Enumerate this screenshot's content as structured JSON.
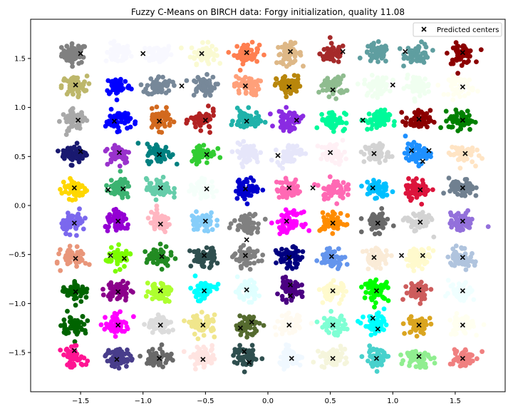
{
  "chart_data": {
    "type": "scatter",
    "title": "Fuzzy C-Means on BIRCH data: Forgy initialization, quality 11.08",
    "xlabel": "",
    "ylabel": "",
    "xlim": [
      -1.9,
      1.9
    ],
    "ylim": [
      -1.9,
      1.9
    ],
    "x_ticks": [
      -1.5,
      -1.0,
      -0.5,
      0.0,
      0.5,
      1.0,
      1.5
    ],
    "x_tick_labels": [
      "−1.5",
      "−1.0",
      "−0.5",
      "0.0",
      "0.5",
      "1.0",
      "1.5"
    ],
    "y_ticks": [
      -1.5,
      -1.0,
      -0.5,
      0.0,
      0.5,
      1.0,
      1.5
    ],
    "y_tick_labels": [
      "−1.5",
      "−1.0",
      "−0.5",
      "0.0",
      "0.5",
      "1.0",
      "1.5"
    ],
    "grid": false,
    "legend_position": "top-right",
    "legend": [
      {
        "label": "Predicted centers",
        "marker": "x",
        "color": "#000000"
      }
    ],
    "grid_columns": [
      -1.55,
      -1.2,
      -0.87,
      -0.52,
      -0.17,
      0.17,
      0.52,
      0.87,
      1.2,
      1.55
    ],
    "grid_rows": [
      1.55,
      1.22,
      0.87,
      0.53,
      0.17,
      -0.17,
      -0.53,
      -0.87,
      -1.22,
      -1.55
    ],
    "cluster_spread": 0.05,
    "cluster_points": 55,
    "clusters": [
      {
        "x": -1.55,
        "y": 1.55,
        "color": "#808080"
      },
      {
        "x": -1.2,
        "y": 1.55,
        "color": "#f8f8ff"
      },
      {
        "x": -0.87,
        "y": 1.55,
        "color": "#f8f8ff"
      },
      {
        "x": -0.52,
        "y": 1.55,
        "color": "#fafad2"
      },
      {
        "x": -0.17,
        "y": 1.55,
        "color": "#ff7f50"
      },
      {
        "x": 0.17,
        "y": 1.55,
        "color": "#deb887"
      },
      {
        "x": 0.52,
        "y": 1.55,
        "color": "#a52a2a"
      },
      {
        "x": 0.87,
        "y": 1.55,
        "color": "#5f9ea0"
      },
      {
        "x": 1.2,
        "y": 1.55,
        "color": "#5f9ea0"
      },
      {
        "x": 1.55,
        "y": 1.55,
        "color": "#8b0000"
      },
      {
        "x": -1.55,
        "y": 1.22,
        "color": "#bdb76b"
      },
      {
        "x": -1.2,
        "y": 1.22,
        "color": "#0000ff"
      },
      {
        "x": -0.87,
        "y": 1.22,
        "color": "#778899"
      },
      {
        "x": -0.52,
        "y": 1.22,
        "color": "#778899"
      },
      {
        "x": -0.17,
        "y": 1.22,
        "color": "#ffa07a"
      },
      {
        "x": 0.17,
        "y": 1.22,
        "color": "#b8860b"
      },
      {
        "x": 0.52,
        "y": 1.22,
        "color": "#8fbc8f"
      },
      {
        "x": 0.87,
        "y": 1.22,
        "color": "#f0fff0"
      },
      {
        "x": 1.2,
        "y": 1.22,
        "color": "#f0fff0"
      },
      {
        "x": 1.55,
        "y": 1.22,
        "color": "#fffff0"
      },
      {
        "x": -1.55,
        "y": 0.87,
        "color": "#a9a9a9"
      },
      {
        "x": -1.2,
        "y": 0.87,
        "color": "#0000ff"
      },
      {
        "x": -0.87,
        "y": 0.87,
        "color": "#d2691e"
      },
      {
        "x": -0.52,
        "y": 0.87,
        "color": "#b22222"
      },
      {
        "x": -0.17,
        "y": 0.87,
        "color": "#20b2aa"
      },
      {
        "x": 0.17,
        "y": 0.87,
        "color": "#8a2be2"
      },
      {
        "x": 0.52,
        "y": 0.87,
        "color": "#00fa9a"
      },
      {
        "x": 0.87,
        "y": 0.87,
        "color": "#00fa9a"
      },
      {
        "x": 1.2,
        "y": 0.87,
        "color": "#8b0000"
      },
      {
        "x": 1.55,
        "y": 0.87,
        "color": "#008000"
      },
      {
        "x": -1.55,
        "y": 0.53,
        "color": "#191970"
      },
      {
        "x": -1.2,
        "y": 0.53,
        "color": "#9932cc"
      },
      {
        "x": -0.87,
        "y": 0.53,
        "color": "#008080"
      },
      {
        "x": -0.52,
        "y": 0.53,
        "color": "#32cd32"
      },
      {
        "x": -0.17,
        "y": 0.53,
        "color": "#e6e6fa"
      },
      {
        "x": 0.17,
        "y": 0.53,
        "color": "#e6e6fa"
      },
      {
        "x": 0.52,
        "y": 0.53,
        "color": "#fff0f5"
      },
      {
        "x": 0.87,
        "y": 0.53,
        "color": "#d3d3d3"
      },
      {
        "x": 1.2,
        "y": 0.53,
        "color": "#1e90ff"
      },
      {
        "x": 1.55,
        "y": 0.53,
        "color": "#ffe4c4"
      },
      {
        "x": -1.55,
        "y": 0.17,
        "color": "#ffd700"
      },
      {
        "x": -1.2,
        "y": 0.17,
        "color": "#3cb371"
      },
      {
        "x": -0.87,
        "y": 0.17,
        "color": "#66cdaa"
      },
      {
        "x": -0.52,
        "y": 0.17,
        "color": "#f5fffa"
      },
      {
        "x": -0.17,
        "y": 0.17,
        "color": "#0000cd"
      },
      {
        "x": 0.17,
        "y": 0.17,
        "color": "#ff69b4"
      },
      {
        "x": 0.52,
        "y": 0.17,
        "color": "#ff69b4"
      },
      {
        "x": 0.87,
        "y": 0.17,
        "color": "#00bfff"
      },
      {
        "x": 1.2,
        "y": 0.17,
        "color": "#dc143c"
      },
      {
        "x": 1.55,
        "y": 0.17,
        "color": "#708090"
      },
      {
        "x": -1.55,
        "y": -0.17,
        "color": "#7b68ee"
      },
      {
        "x": -1.2,
        "y": -0.17,
        "color": "#9400d3"
      },
      {
        "x": -0.87,
        "y": -0.17,
        "color": "#ffb6c1"
      },
      {
        "x": -0.52,
        "y": -0.17,
        "color": "#87cefa"
      },
      {
        "x": -0.17,
        "y": -0.17,
        "color": "#808080"
      },
      {
        "x": 0.17,
        "y": -0.17,
        "color": "#ff00ff"
      },
      {
        "x": 0.52,
        "y": -0.17,
        "color": "#ff8c00"
      },
      {
        "x": 0.87,
        "y": -0.17,
        "color": "#696969"
      },
      {
        "x": 1.2,
        "y": -0.17,
        "color": "#d3d3d3"
      },
      {
        "x": 1.55,
        "y": -0.17,
        "color": "#9370db"
      },
      {
        "x": -1.55,
        "y": -0.53,
        "color": "#e9967a"
      },
      {
        "x": -1.2,
        "y": -0.53,
        "color": "#7cfc00"
      },
      {
        "x": -0.87,
        "y": -0.53,
        "color": "#228b22"
      },
      {
        "x": -0.52,
        "y": -0.53,
        "color": "#2f4f4f"
      },
      {
        "x": -0.17,
        "y": -0.53,
        "color": "#808080"
      },
      {
        "x": 0.17,
        "y": -0.53,
        "color": "#000080"
      },
      {
        "x": 0.52,
        "y": -0.53,
        "color": "#6495ed"
      },
      {
        "x": 0.87,
        "y": -0.53,
        "color": "#faebd7"
      },
      {
        "x": 1.2,
        "y": -0.53,
        "color": "#fffacd"
      },
      {
        "x": 1.55,
        "y": -0.53,
        "color": "#b0c4de"
      },
      {
        "x": -1.55,
        "y": -0.87,
        "color": "#006400"
      },
      {
        "x": -1.2,
        "y": -0.87,
        "color": "#8b008b"
      },
      {
        "x": -0.87,
        "y": -0.87,
        "color": "#adff2f"
      },
      {
        "x": -0.52,
        "y": -0.87,
        "color": "#00ffff"
      },
      {
        "x": -0.17,
        "y": -0.87,
        "color": "#e0ffff"
      },
      {
        "x": 0.17,
        "y": -0.87,
        "color": "#4b0082"
      },
      {
        "x": 0.52,
        "y": -0.87,
        "color": "#fffacd"
      },
      {
        "x": 0.87,
        "y": -0.87,
        "color": "#00ff00"
      },
      {
        "x": 1.2,
        "y": -0.87,
        "color": "#cd5c5c"
      },
      {
        "x": 1.55,
        "y": -0.87,
        "color": "#f0ffff"
      },
      {
        "x": -1.55,
        "y": -1.22,
        "color": "#006400"
      },
      {
        "x": -1.2,
        "y": -1.22,
        "color": "#ff00ff"
      },
      {
        "x": -0.87,
        "y": -1.22,
        "color": "#dcdcdc"
      },
      {
        "x": -0.52,
        "y": -1.22,
        "color": "#f0e68c"
      },
      {
        "x": -0.17,
        "y": -1.22,
        "color": "#556b2f"
      },
      {
        "x": 0.17,
        "y": -1.22,
        "color": "#fffaf0"
      },
      {
        "x": 0.52,
        "y": -1.22,
        "color": "#7fffd4"
      },
      {
        "x": 0.87,
        "y": -1.22,
        "color": "#00ffff"
      },
      {
        "x": 1.2,
        "y": -1.22,
        "color": "#daa520"
      },
      {
        "x": 1.55,
        "y": -1.22,
        "color": "#fffff0"
      },
      {
        "x": -1.55,
        "y": -1.55,
        "color": "#ff1493"
      },
      {
        "x": -1.2,
        "y": -1.55,
        "color": "#483d8b"
      },
      {
        "x": -0.87,
        "y": -1.55,
        "color": "#696969"
      },
      {
        "x": -0.52,
        "y": -1.55,
        "color": "#ffe4e1"
      },
      {
        "x": -0.17,
        "y": -1.55,
        "color": "#2f4f4f"
      },
      {
        "x": 0.17,
        "y": -1.55,
        "color": "#f0f8ff"
      },
      {
        "x": 0.52,
        "y": -1.55,
        "color": "#f5f5dc"
      },
      {
        "x": 0.87,
        "y": -1.55,
        "color": "#48d1cc"
      },
      {
        "x": 1.2,
        "y": -1.55,
        "color": "#90ee90"
      },
      {
        "x": 1.55,
        "y": -1.55,
        "color": "#f08080"
      }
    ],
    "predicted_centers": [
      [
        -1.5,
        1.55
      ],
      [
        -1.0,
        1.55
      ],
      [
        -0.53,
        1.55
      ],
      [
        -0.17,
        1.56
      ],
      [
        0.18,
        1.57
      ],
      [
        0.6,
        1.57
      ],
      [
        1.1,
        1.57
      ],
      [
        1.56,
        1.56
      ],
      [
        -1.54,
        1.23
      ],
      [
        -0.69,
        1.22
      ],
      [
        -0.18,
        1.22
      ],
      [
        0.17,
        1.21
      ],
      [
        0.52,
        1.18
      ],
      [
        1.0,
        1.23
      ],
      [
        1.56,
        1.21
      ],
      [
        -1.52,
        0.87
      ],
      [
        -1.23,
        0.86
      ],
      [
        -0.87,
        0.86
      ],
      [
        -0.5,
        0.87
      ],
      [
        -0.17,
        0.86
      ],
      [
        0.23,
        0.87
      ],
      [
        0.76,
        0.87
      ],
      [
        1.21,
        0.88
      ],
      [
        1.56,
        0.87
      ],
      [
        -1.5,
        0.55
      ],
      [
        -1.19,
        0.54
      ],
      [
        -0.87,
        0.52
      ],
      [
        -0.49,
        0.52
      ],
      [
        0.08,
        0.51
      ],
      [
        0.5,
        0.54
      ],
      [
        0.85,
        0.53
      ],
      [
        1.15,
        0.56
      ],
      [
        1.24,
        0.45
      ],
      [
        1.29,
        0.56
      ],
      [
        1.58,
        0.53
      ],
      [
        -1.55,
        0.18
      ],
      [
        -1.28,
        0.16
      ],
      [
        -1.16,
        0.17
      ],
      [
        -0.86,
        0.18
      ],
      [
        -0.49,
        0.17
      ],
      [
        -0.18,
        0.17
      ],
      [
        0.17,
        0.18
      ],
      [
        0.36,
        0.18
      ],
      [
        0.84,
        0.18
      ],
      [
        1.22,
        0.16
      ],
      [
        1.56,
        0.18
      ],
      [
        -1.55,
        -0.18
      ],
      [
        -1.2,
        -0.16
      ],
      [
        -0.86,
        -0.19
      ],
      [
        -0.5,
        -0.16
      ],
      [
        -0.17,
        -0.35
      ],
      [
        0.15,
        -0.16
      ],
      [
        0.52,
        -0.18
      ],
      [
        0.88,
        -0.18
      ],
      [
        1.22,
        -0.17
      ],
      [
        1.56,
        -0.16
      ],
      [
        -1.54,
        -0.54
      ],
      [
        -1.26,
        -0.51
      ],
      [
        -1.15,
        -0.54
      ],
      [
        -0.85,
        -0.52
      ],
      [
        -0.51,
        -0.51
      ],
      [
        -0.18,
        -0.51
      ],
      [
        0.17,
        -0.53
      ],
      [
        0.51,
        -0.52
      ],
      [
        0.85,
        -0.53
      ],
      [
        1.07,
        -0.51
      ],
      [
        1.24,
        -0.51
      ],
      [
        1.56,
        -0.53
      ],
      [
        -1.54,
        -0.88
      ],
      [
        -1.2,
        -0.88
      ],
      [
        -0.86,
        -0.87
      ],
      [
        -0.51,
        -0.87
      ],
      [
        -0.17,
        -0.86
      ],
      [
        0.18,
        -0.81
      ],
      [
        0.18,
        -0.92
      ],
      [
        0.52,
        -0.87
      ],
      [
        0.87,
        -0.87
      ],
      [
        1.21,
        -0.86
      ],
      [
        1.56,
        -0.87
      ],
      [
        -1.2,
        -1.22
      ],
      [
        -0.86,
        -1.22
      ],
      [
        -0.52,
        -1.22
      ],
      [
        -0.22,
        -1.25
      ],
      [
        -0.13,
        -1.19
      ],
      [
        0.17,
        -1.22
      ],
      [
        0.52,
        -1.22
      ],
      [
        0.84,
        -1.15
      ],
      [
        0.88,
        -1.26
      ],
      [
        1.21,
        -1.22
      ],
      [
        1.56,
        -1.22
      ],
      [
        -1.55,
        -1.48
      ],
      [
        -1.21,
        -1.57
      ],
      [
        -0.87,
        -1.56
      ],
      [
        -0.52,
        -1.57
      ],
      [
        -0.19,
        -1.49
      ],
      [
        -0.15,
        -1.6
      ],
      [
        0.19,
        -1.56
      ],
      [
        0.52,
        -1.56
      ],
      [
        0.87,
        -1.56
      ],
      [
        1.21,
        -1.54
      ],
      [
        1.56,
        -1.56
      ]
    ]
  }
}
